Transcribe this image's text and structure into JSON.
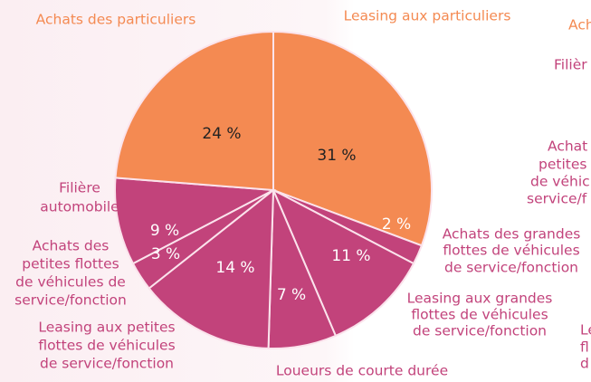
{
  "chart_data": {
    "type": "pie",
    "categories": [
      [
        "Leasing aux particuliers"
      ],
      [
        "Achats des grandes",
        "flottes de véhicules",
        "de service/fonction"
      ],
      [
        "Leasing aux grandes",
        "flottes de véhicules",
        "de service/fonction"
      ],
      [
        "Loueurs de courte durée"
      ],
      [
        "Leasing aux petites",
        "flottes de véhicules",
        "de service/fonction"
      ],
      [
        "Achats des",
        "petites flottes",
        "de véhicules de",
        "service/fonction"
      ],
      [
        "Filière",
        "automobile"
      ],
      [
        "Achats des particuliers"
      ]
    ],
    "values": [
      31,
      2,
      11,
      7,
      14,
      3,
      9,
      24
    ],
    "value_labels": [
      "31 %",
      "2 %",
      "11 %",
      "7 %",
      "14 %",
      "3 %",
      "9 %",
      "24 %"
    ],
    "colors": [
      "#f48a52",
      "#c2437b",
      "#c2437b",
      "#c2437b",
      "#c2437b",
      "#c2437b",
      "#c2437b",
      "#f48a52"
    ],
    "cropped_labels": [
      "Ach",
      "Filièr",
      "Achat",
      "petites",
      "de véhic",
      "service/f",
      "Le",
      "fl",
      "d"
    ]
  }
}
